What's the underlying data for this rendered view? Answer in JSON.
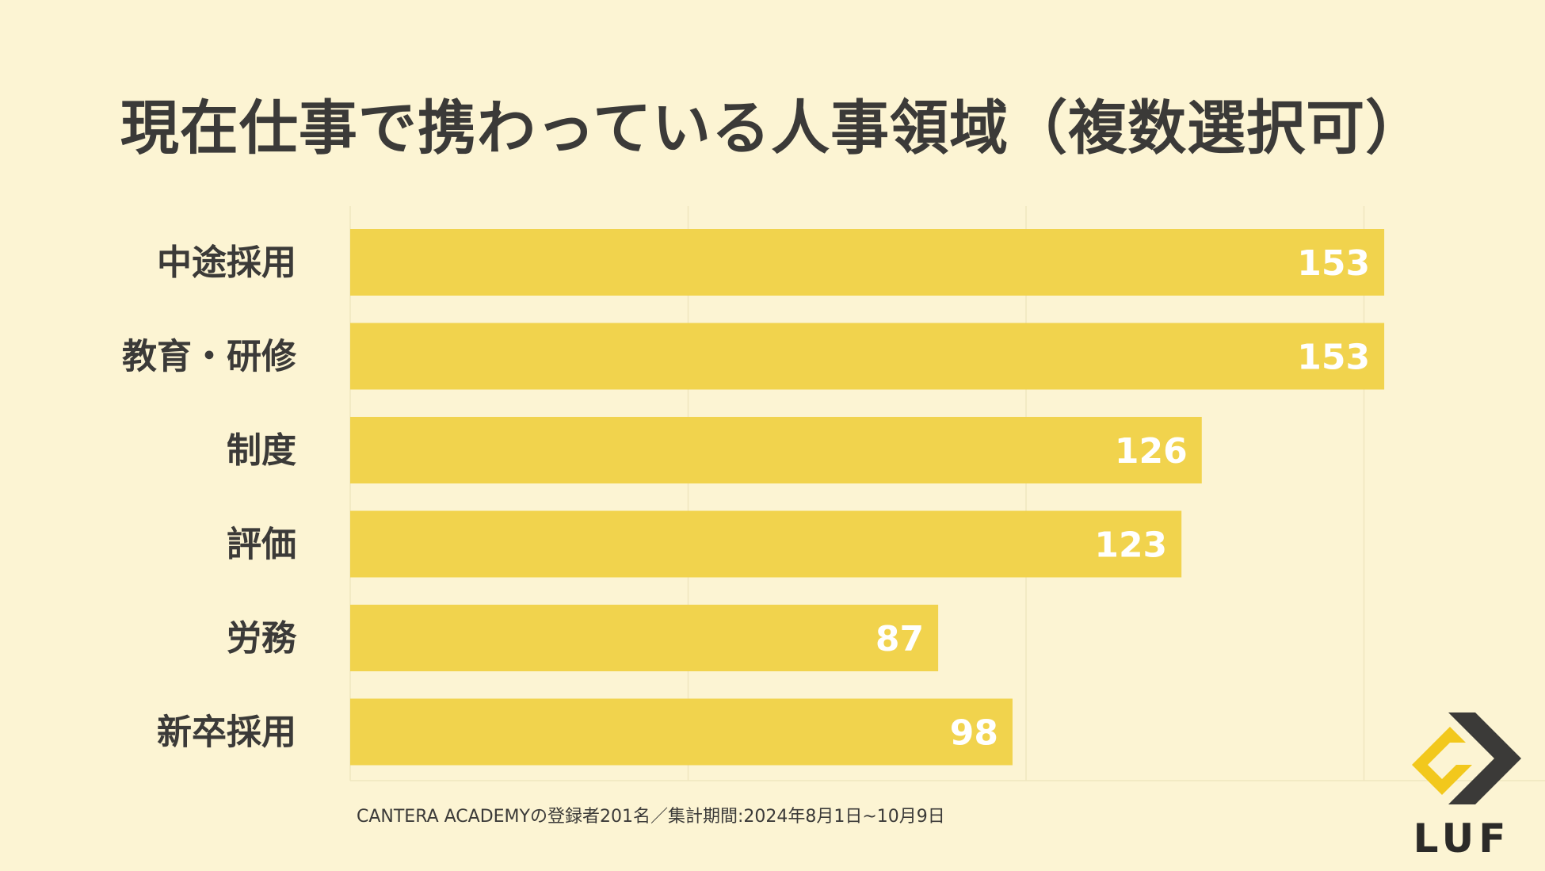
{
  "title": "現在仕事で携わっている人事領域（複数選択可）",
  "footnote": "CANTERA ACADEMYの登録者201名／集計期間:2024年8月1日~10月9日",
  "logo": {
    "text": "LUF",
    "icon": "luf-chevron-logo"
  },
  "colors": {
    "background": "#FCF4D3",
    "bar": "#F1D34D",
    "label": "#3B3A38",
    "value_label": "#FFFFFF"
  },
  "chart_data": {
    "type": "bar",
    "orientation": "horizontal",
    "title": "現在仕事で携わっている人事領域（複数選択可）",
    "categories": [
      "中途採用",
      "教育・研修",
      "制度",
      "評価",
      "労務",
      "新卒採用"
    ],
    "values": [
      153,
      153,
      126,
      123,
      87,
      98
    ],
    "xlim": [
      0,
      200
    ],
    "grid": true,
    "legend": "none"
  }
}
